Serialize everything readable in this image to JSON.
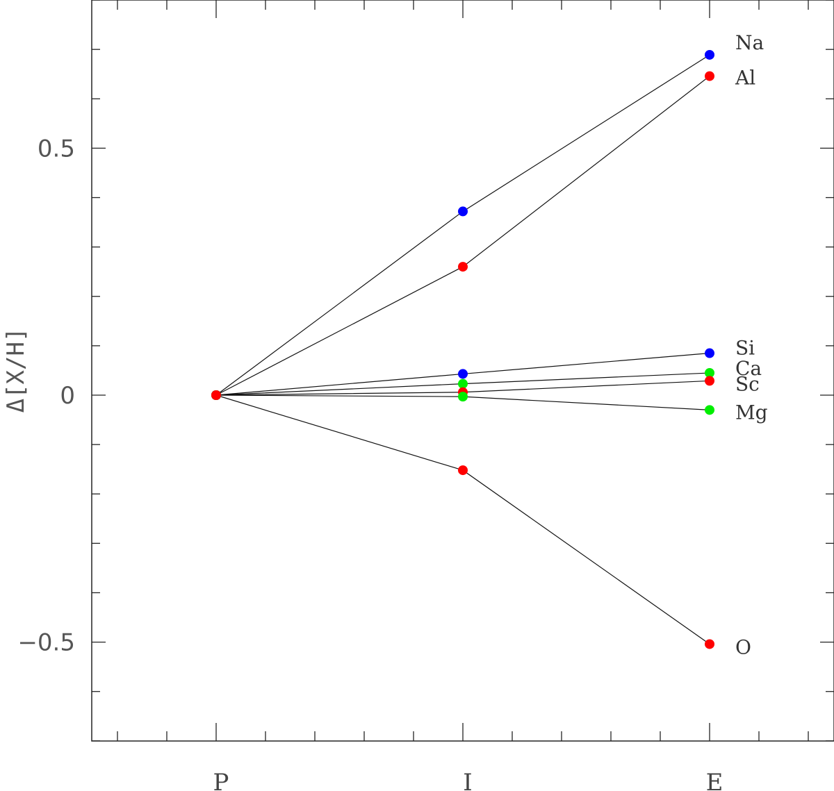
{
  "chart_data": {
    "type": "line",
    "title": "",
    "xlabel": "",
    "ylabel": "Δ[X/H]",
    "categories": [
      "P",
      "I",
      "E"
    ],
    "ylim": [
      -0.7,
      0.8
    ],
    "yticks": [
      -0.5,
      0,
      0.5
    ],
    "ytick_labels": [
      "−0.5",
      "0",
      "0.5"
    ],
    "grid": false,
    "legend": "none",
    "series": [
      {
        "name": "Na",
        "color": "#0000ff",
        "values": [
          0.0,
          0.372,
          0.689
        ]
      },
      {
        "name": "Al",
        "color": "#ff0000",
        "values": [
          0.0,
          0.26,
          0.646
        ]
      },
      {
        "name": "Si",
        "color": "#0000ff",
        "values": [
          0.0,
          0.043,
          0.085
        ]
      },
      {
        "name": "Ca",
        "color": "#00ee00",
        "values": [
          0.0,
          0.023,
          0.045
        ]
      },
      {
        "name": "Sc",
        "color": "#ff0000",
        "values": [
          0.0,
          0.006,
          0.029
        ]
      },
      {
        "name": "Mg",
        "color": "#00ee00",
        "values": [
          0.0,
          -0.003,
          -0.03
        ]
      },
      {
        "name": "O",
        "color": "#ff0000",
        "values": [
          0.0,
          -0.152,
          -0.504
        ]
      }
    ]
  }
}
